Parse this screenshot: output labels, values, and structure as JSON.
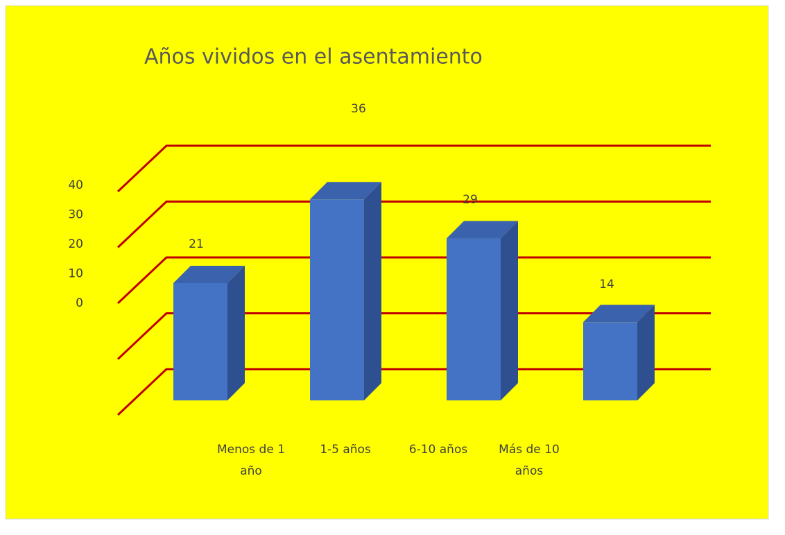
{
  "chart_data": {
    "type": "bar3d",
    "title": "Años vividos en el asentamiento",
    "categories": [
      "Menos de 1 año",
      "1-5 años",
      "6-10 años",
      "Más de 10 años"
    ],
    "values": [
      21,
      36,
      29,
      14
    ],
    "color": "#4472c4",
    "grid_color": "#c00000",
    "ylim": [
      0,
      40
    ],
    "yticks": [
      0,
      10,
      20,
      30,
      40
    ],
    "grid": true
  }
}
